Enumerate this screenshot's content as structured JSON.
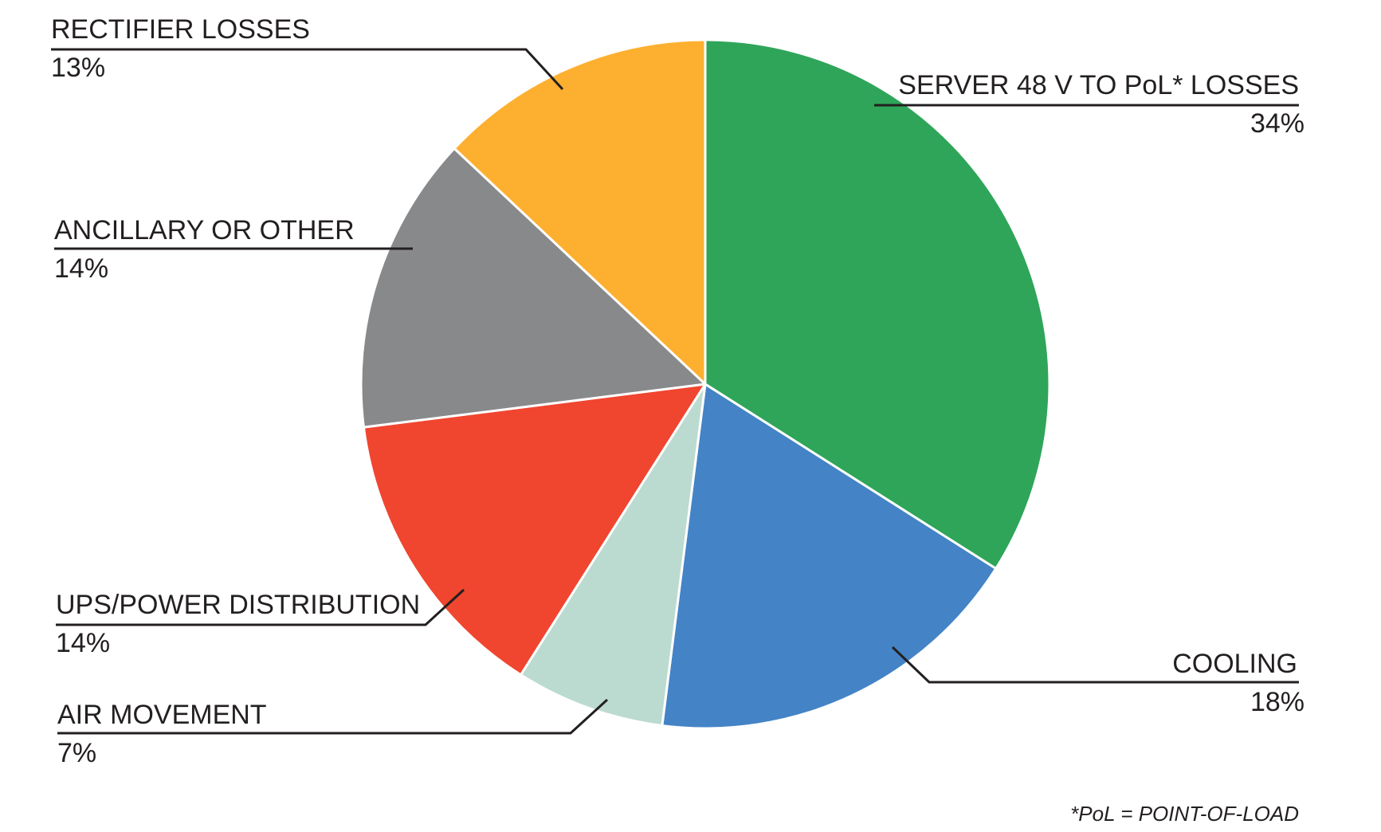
{
  "chart_data": {
    "type": "pie",
    "title": "",
    "start": "12 o'clock",
    "direction": "clockwise",
    "slices": [
      {
        "label": "SERVER 48 V TO PoL* LOSSES",
        "value": 34,
        "value_label": "34%",
        "color": "#2fa55a"
      },
      {
        "label": "COOLING",
        "value": 18,
        "value_label": "18%",
        "color": "#4483c6"
      },
      {
        "label": "AIR MOVEMENT",
        "value": 7,
        "value_label": "7%",
        "color": "#bcdbd0"
      },
      {
        "label": "UPS/POWER DISTRIBUTION",
        "value": 14,
        "value_label": "14%",
        "color": "#f0452f"
      },
      {
        "label": "ANCILLARY OR OTHER",
        "value": 14,
        "value_label": "14%",
        "color": "#88898b"
      },
      {
        "label": "RECTIFIER LOSSES",
        "value": 13,
        "value_label": "13%",
        "color": "#fdb030"
      }
    ],
    "footnote": "*PoL = POINT-OF-LOAD"
  }
}
